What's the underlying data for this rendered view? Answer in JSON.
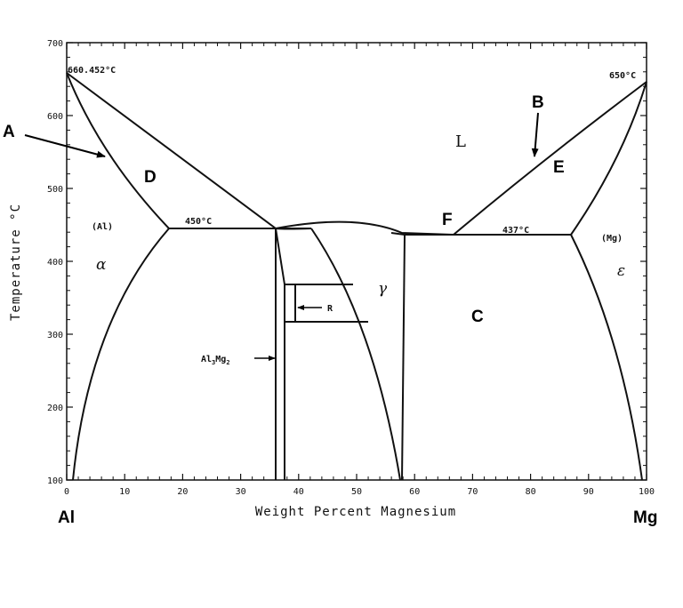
{
  "axes": {
    "xlabel": "Weight Percent Magnesium",
    "ylabel": "Temperature °C",
    "x_ticks": [
      "0",
      "10",
      "20",
      "30",
      "40",
      "50",
      "60",
      "70",
      "80",
      "90",
      "100"
    ],
    "y_ticks": [
      "100",
      "200",
      "300",
      "400",
      "500",
      "600",
      "700"
    ],
    "x_range": [
      0,
      100
    ],
    "y_range": [
      100,
      700
    ]
  },
  "endpoints": {
    "left": "Al",
    "right": "Mg"
  },
  "temperatures": {
    "al_melt": "660.452°C",
    "mg_melt": "650°C",
    "eutectic_left": "450°C",
    "eutectic_right": "437°C"
  },
  "regions": {
    "liquid": "L",
    "al_phase": "(Al)",
    "mg_phase": "(Mg)",
    "alpha": "α",
    "gamma": "γ",
    "epsilon": "ε",
    "r_phase": "R",
    "beta_phase": "Al",
    "beta_sub3": "3",
    "beta_mg": "Mg",
    "beta_sub2": "2"
  },
  "markers": {
    "A": "A",
    "B": "B",
    "C": "C",
    "D": "D",
    "E": "E",
    "F": "F"
  }
}
